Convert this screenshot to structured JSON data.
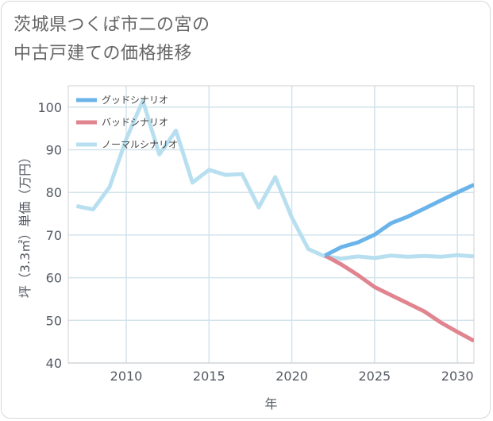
{
  "title": {
    "line1": "茨城県つくば市二の宮の",
    "line2": "中古戸建ての価格推移"
  },
  "chart_data": {
    "type": "line",
    "title": "茨城県つくば市二の宮の中古戸建ての価格推移",
    "xlabel": "年",
    "ylabel": "坪（3.3㎡）単価（万円）",
    "xlim": [
      2006.5,
      2031
    ],
    "ylim": [
      40,
      105
    ],
    "xticks": [
      2010,
      2015,
      2020,
      2025,
      2030
    ],
    "yticks": [
      40,
      50,
      60,
      70,
      80,
      90,
      100
    ],
    "grid": true,
    "legend_position": "top-left",
    "series": [
      {
        "name": "グッドシナリオ",
        "color": "#6ab4ea",
        "x": [
          2022,
          2023,
          2024,
          2025,
          2026,
          2027,
          2028,
          2029,
          2030,
          2031
        ],
        "values": [
          65.2,
          67.2,
          68.3,
          70.1,
          72.8,
          74.3,
          76.2,
          78.1,
          80.0,
          81.8
        ]
      },
      {
        "name": "バッドシナリオ",
        "color": "#e0858f",
        "x": [
          2022,
          2023,
          2024,
          2025,
          2026,
          2027,
          2028,
          2029,
          2030,
          2031
        ],
        "values": [
          65.2,
          63.1,
          60.6,
          57.8,
          55.9,
          54.0,
          52.1,
          49.5,
          47.3,
          45.2
        ]
      },
      {
        "name": "ノーマルシナリオ",
        "color": "#b8dff0",
        "x": [
          2007,
          2008,
          2009,
          2010,
          2011,
          2012,
          2013,
          2014,
          2015,
          2016,
          2017,
          2018,
          2019,
          2020,
          2021,
          2022,
          2023,
          2024,
          2025,
          2026,
          2027,
          2028,
          2029,
          2030,
          2031
        ],
        "values": [
          76.8,
          76.0,
          81.3,
          92.5,
          101.5,
          88.9,
          94.5,
          82.3,
          85.3,
          84.1,
          84.3,
          76.5,
          83.6,
          74.1,
          66.7,
          65.0,
          64.5,
          65.0,
          64.6,
          65.2,
          64.9,
          65.1,
          64.9,
          65.3,
          65.0
        ]
      }
    ]
  }
}
